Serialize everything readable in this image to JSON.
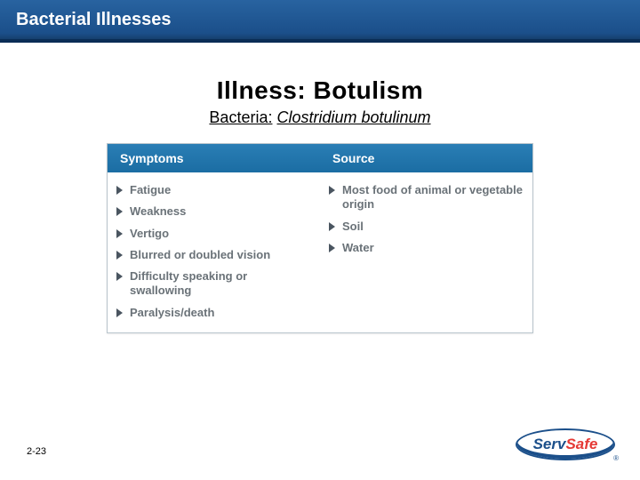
{
  "header": {
    "title": "Bacterial Illnesses",
    "bar_gradient": [
      "#2863a0",
      "#1b4f8a",
      "#163f6e"
    ],
    "underline_color": "#0a2d56"
  },
  "main": {
    "illness_title": "Illness: Botulism",
    "bacteria_label": "Bacteria:",
    "bacteria_name": "Clostridium botulinum"
  },
  "table": {
    "header_gradient": [
      "#2a7eb5",
      "#1b6da3"
    ],
    "cell_text_color": "#6a7278",
    "triangle_color": "#4a5560",
    "columns": [
      {
        "header": "Symptoms",
        "items": [
          "Fatigue",
          "Weakness",
          "Vertigo",
          "Blurred or doubled vision",
          "Difficulty speaking or swallowing",
          "Paralysis/death"
        ]
      },
      {
        "header": "Source",
        "items": [
          "Most food of animal or vegetable origin",
          "Soil",
          "Water"
        ]
      }
    ]
  },
  "footer": {
    "page_number": "2-23",
    "logo_serv": "Serv",
    "logo_safe": "Safe",
    "logo_r": "®",
    "logo_colors": {
      "serv": "#1b4f8a",
      "safe": "#e53935",
      "border": "#1b4f8a"
    }
  }
}
